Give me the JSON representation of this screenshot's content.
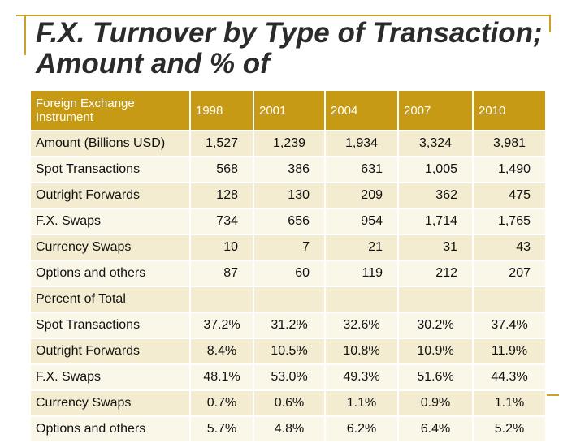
{
  "title": "F.X. Turnover by Type of Transaction; Amount and % of",
  "header": [
    "Foreign Exchange Instrument",
    "1998",
    "2001",
    "2004",
    "2007",
    "2010"
  ],
  "rows": [
    {
      "label": "Amount (Billions USD)",
      "values": [
        "1,527",
        "1,239",
        "1,934",
        "3,324",
        "3,981"
      ]
    },
    {
      "label": "Spot Transactions",
      "values": [
        "568",
        "386",
        "631",
        "1,005",
        "1,490"
      ]
    },
    {
      "label": "Outright Forwards",
      "values": [
        "128",
        "130",
        "209",
        "362",
        "475"
      ]
    },
    {
      "label": "F.X. Swaps",
      "values": [
        "734",
        "656",
        "954",
        "1,714",
        "1,765"
      ]
    },
    {
      "label": "Currency Swaps",
      "values": [
        "10",
        "7",
        "21",
        "31",
        "43"
      ]
    },
    {
      "label": "Options and others",
      "values": [
        "87",
        "60",
        "119",
        "212",
        "207"
      ]
    },
    {
      "label": "Percent of Total",
      "values": [
        "",
        "",
        "",
        "",
        ""
      ]
    },
    {
      "label": "Spot Transactions",
      "values": [
        "37.2%",
        "31.2%",
        "32.6%",
        "30.2%",
        "37.4%"
      ]
    },
    {
      "label": "Outright Forwards",
      "values": [
        "8.4%",
        "10.5%",
        "10.8%",
        "10.9%",
        "11.9%"
      ]
    },
    {
      "label": "F.X. Swaps",
      "values": [
        "48.1%",
        "53.0%",
        "49.3%",
        "51.6%",
        "44.3%"
      ]
    },
    {
      "label": "Currency Swaps",
      "values": [
        "0.7%",
        "0.6%",
        "1.1%",
        "0.9%",
        "1.1%"
      ]
    },
    {
      "label": "Options and others",
      "values": [
        "5.7%",
        "4.8%",
        "6.2%",
        "6.4%",
        "5.2%"
      ]
    }
  ],
  "colors": {
    "accent": "#c79a16",
    "row_dark": "#f3ecd0",
    "row_light": "#faf6e8"
  }
}
